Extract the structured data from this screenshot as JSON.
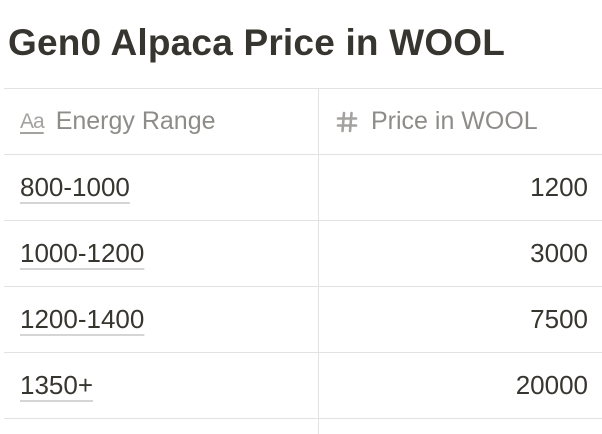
{
  "page": {
    "title": "Gen0 Alpaca Price in WOOL"
  },
  "table": {
    "columns": [
      {
        "label": "Energy Range",
        "icon": "text-property-icon"
      },
      {
        "label": "Price in WOOL",
        "icon": "number-property-icon"
      }
    ],
    "rows": [
      {
        "energy_range": "800-1000",
        "price": "1200"
      },
      {
        "energy_range": "1000-1200",
        "price": "3000"
      },
      {
        "energy_range": "1200-1400",
        "price": "7500"
      },
      {
        "energy_range": "1350+",
        "price": "20000"
      }
    ]
  },
  "colors": {
    "text": "#37352f",
    "muted": "#8d8c88",
    "border": "#e3e2e0"
  }
}
